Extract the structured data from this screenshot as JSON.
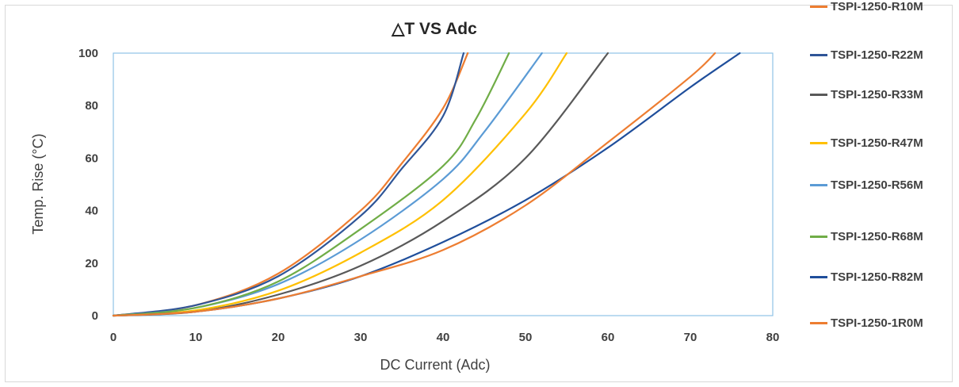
{
  "chart_data": {
    "type": "line",
    "title": "△T VS Adc",
    "xlabel": "DC Current (Adc)",
    "ylabel": "Temp. Rise (°C)",
    "xlim": [
      0,
      80
    ],
    "ylim": [
      0,
      100
    ],
    "xticks": [
      0,
      10,
      20,
      30,
      40,
      50,
      60,
      70,
      80
    ],
    "yticks": [
      0,
      20,
      40,
      60,
      80,
      100
    ],
    "grid": false,
    "legend": "right",
    "series": [
      {
        "name": "TSPI-1250-R10M",
        "color": "#ed7d31",
        "x": [
          0,
          10,
          20,
          30,
          35,
          40,
          43
        ],
        "y": [
          0,
          4,
          16,
          40,
          58,
          79,
          100
        ]
      },
      {
        "name": "TSPI-1250-R22M",
        "color": "#2f5597",
        "x": [
          0,
          10,
          20,
          30,
          35,
          40,
          42.5
        ],
        "y": [
          0,
          4,
          15,
          38,
          56,
          76,
          100
        ]
      },
      {
        "name": "TSPI-1250-R33M",
        "color": "#595959",
        "x": [
          0,
          10,
          20,
          30,
          40,
          50,
          60
        ],
        "y": [
          0,
          1.5,
          8,
          19,
          36,
          60,
          100
        ]
      },
      {
        "name": "TSPI-1250-R47M",
        "color": "#ffc000",
        "x": [
          0,
          10,
          20,
          30,
          40,
          50,
          55
        ],
        "y": [
          0,
          2,
          9.5,
          24,
          44,
          77,
          100
        ]
      },
      {
        "name": "TSPI-1250-R56M",
        "color": "#5b9bd5",
        "x": [
          0,
          10,
          20,
          30,
          40,
          45,
          52
        ],
        "y": [
          0,
          3,
          12,
          29,
          52,
          70,
          100
        ]
      },
      {
        "name": "TSPI-1250-R68M",
        "color": "#70ad47",
        "x": [
          0,
          10,
          20,
          30,
          40,
          44,
          48
        ],
        "y": [
          0,
          3,
          13,
          33,
          57,
          75,
          100
        ]
      },
      {
        "name": "TSPI-1250-R82M",
        "color": "#1f4e9b",
        "x": [
          0,
          10,
          20,
          30,
          40,
          50,
          60,
          70,
          76
        ],
        "y": [
          0,
          1.5,
          6.5,
          15,
          28,
          44,
          64,
          87,
          100
        ]
      },
      {
        "name": "TSPI-1250-1R0M",
        "color": "#ed7d31",
        "x": [
          0,
          10,
          20,
          30,
          40,
          50,
          60,
          70,
          73
        ],
        "y": [
          0,
          1.5,
          6.5,
          15,
          25,
          42,
          66,
          91,
          100
        ]
      }
    ]
  }
}
